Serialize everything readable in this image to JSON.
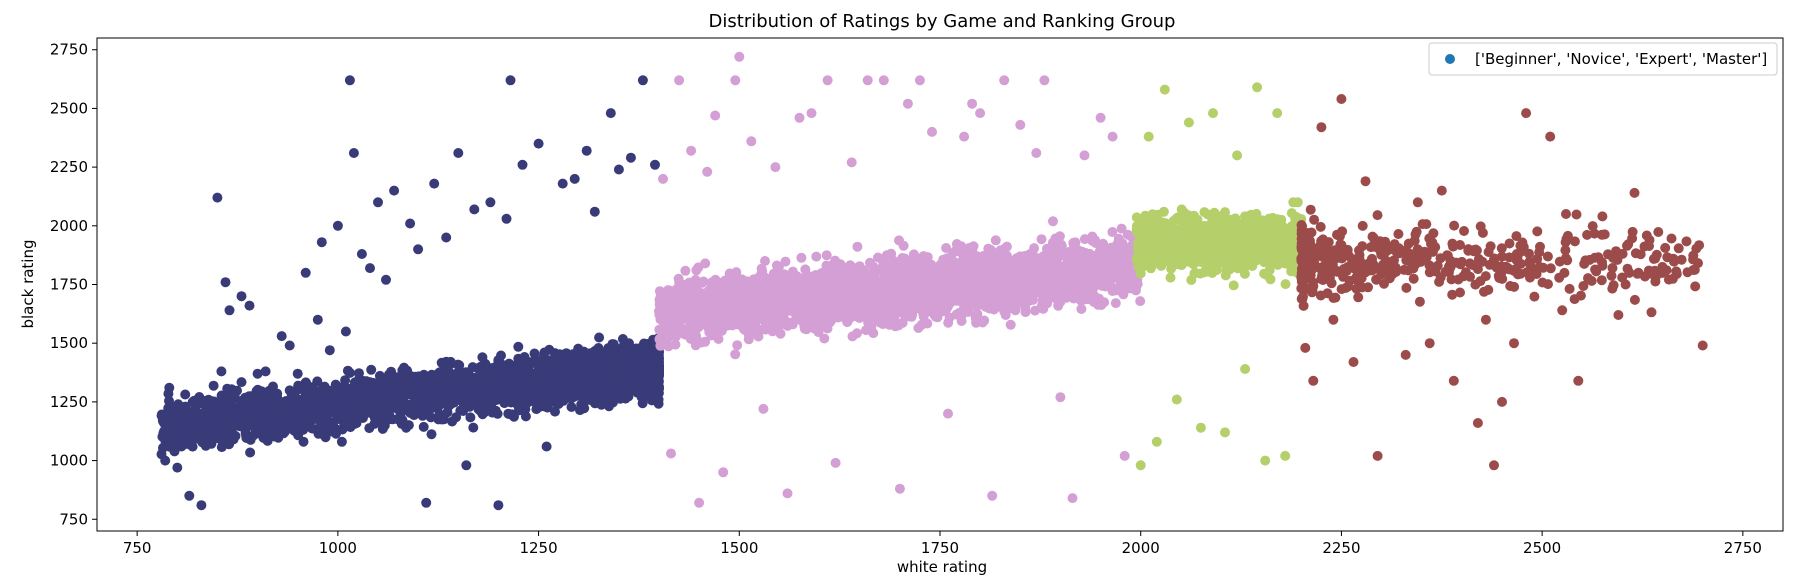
{
  "chart_data": {
    "type": "scatter",
    "title": "Distribution of Ratings by Game and Ranking Group",
    "xlabel": "white rating",
    "ylabel": "black rating",
    "xlim": [
      700,
      2800
    ],
    "ylim": [
      700,
      2800
    ],
    "xticks": [
      750,
      1000,
      1250,
      1500,
      1750,
      2000,
      2250,
      2500,
      2750
    ],
    "yticks": [
      750,
      1000,
      1250,
      1500,
      1750,
      2000,
      2250,
      2500,
      2750
    ],
    "grid": false,
    "legend": {
      "position": "top-right",
      "label": "['Beginner', 'Novice', 'Expert', 'Master']",
      "marker_color": "#1f77b4"
    },
    "groups": [
      {
        "color": "#393b79",
        "x_range": [
          780,
          1400
        ],
        "points": [
          [
            785,
            1000
          ],
          [
            790,
            1310
          ],
          [
            800,
            970
          ],
          [
            810,
            1230
          ],
          [
            815,
            850
          ],
          [
            830,
            810
          ],
          [
            840,
            1240
          ],
          [
            850,
            2120
          ],
          [
            855,
            1380
          ],
          [
            860,
            1760
          ],
          [
            865,
            1640
          ],
          [
            870,
            1090
          ],
          [
            880,
            1700
          ],
          [
            890,
            1660
          ],
          [
            900,
            1370
          ],
          [
            910,
            1380
          ],
          [
            920,
            1120
          ],
          [
            930,
            1530
          ],
          [
            940,
            1490
          ],
          [
            950,
            1370
          ],
          [
            960,
            1800
          ],
          [
            975,
            1600
          ],
          [
            980,
            1930
          ],
          [
            990,
            1470
          ],
          [
            1000,
            2000
          ],
          [
            1005,
            1080
          ],
          [
            1010,
            1550
          ],
          [
            1015,
            2620
          ],
          [
            1020,
            2310
          ],
          [
            1030,
            1880
          ],
          [
            1040,
            1820
          ],
          [
            1050,
            2100
          ],
          [
            1060,
            1770
          ],
          [
            1070,
            2150
          ],
          [
            1085,
            1330
          ],
          [
            1090,
            2010
          ],
          [
            1100,
            1900
          ],
          [
            1110,
            820
          ],
          [
            1120,
            2180
          ],
          [
            1135,
            1950
          ],
          [
            1150,
            2310
          ],
          [
            1160,
            980
          ],
          [
            1170,
            2070
          ],
          [
            1180,
            1440
          ],
          [
            1190,
            2100
          ],
          [
            1200,
            810
          ],
          [
            1210,
            2030
          ],
          [
            1215,
            2620
          ],
          [
            1230,
            2260
          ],
          [
            1250,
            2350
          ],
          [
            1260,
            1060
          ],
          [
            1280,
            2180
          ],
          [
            1295,
            2200
          ],
          [
            1310,
            2320
          ],
          [
            1320,
            2060
          ],
          [
            1340,
            2480
          ],
          [
            1350,
            2240
          ],
          [
            1365,
            2290
          ],
          [
            1380,
            2620
          ],
          [
            1395,
            2260
          ]
        ]
      },
      {
        "color": "#d39fd4",
        "x_range": [
          1400,
          2000
        ],
        "points": [
          [
            1405,
            2200
          ],
          [
            1415,
            1030
          ],
          [
            1425,
            2620
          ],
          [
            1440,
            2320
          ],
          [
            1450,
            820
          ],
          [
            1460,
            2230
          ],
          [
            1470,
            2470
          ],
          [
            1480,
            950
          ],
          [
            1495,
            2620
          ],
          [
            1500,
            2720
          ],
          [
            1515,
            2360
          ],
          [
            1530,
            1220
          ],
          [
            1545,
            2250
          ],
          [
            1560,
            860
          ],
          [
            1575,
            2460
          ],
          [
            1590,
            2480
          ],
          [
            1610,
            2620
          ],
          [
            1620,
            990
          ],
          [
            1640,
            2270
          ],
          [
            1660,
            2620
          ],
          [
            1680,
            2620
          ],
          [
            1700,
            880
          ],
          [
            1710,
            2520
          ],
          [
            1725,
            2620
          ],
          [
            1740,
            2400
          ],
          [
            1760,
            1200
          ],
          [
            1780,
            2380
          ],
          [
            1790,
            2520
          ],
          [
            1800,
            2480
          ],
          [
            1815,
            850
          ],
          [
            1830,
            2620
          ],
          [
            1850,
            2430
          ],
          [
            1870,
            2310
          ],
          [
            1880,
            2620
          ],
          [
            1900,
            1270
          ],
          [
            1915,
            840
          ],
          [
            1930,
            2300
          ],
          [
            1950,
            2460
          ],
          [
            1965,
            2380
          ],
          [
            1980,
            1020
          ]
        ]
      },
      {
        "color": "#b5cf6b",
        "x_range": [
          1995,
          2200
        ],
        "points": [
          [
            2000,
            980
          ],
          [
            2010,
            2380
          ],
          [
            2020,
            1080
          ],
          [
            2030,
            2580
          ],
          [
            2045,
            1260
          ],
          [
            2060,
            2440
          ],
          [
            2075,
            1140
          ],
          [
            2090,
            2480
          ],
          [
            2105,
            1120
          ],
          [
            2120,
            2300
          ],
          [
            2130,
            1390
          ],
          [
            2145,
            2590
          ],
          [
            2155,
            1000
          ],
          [
            2170,
            2480
          ],
          [
            2180,
            1020
          ],
          [
            2190,
            2100
          ]
        ]
      },
      {
        "color": "#9c4b4b",
        "x_range": [
          2200,
          2700
        ],
        "points": [
          [
            2205,
            1480
          ],
          [
            2215,
            1340
          ],
          [
            2225,
            2420
          ],
          [
            2240,
            1600
          ],
          [
            2250,
            2540
          ],
          [
            2265,
            1420
          ],
          [
            2280,
            2190
          ],
          [
            2295,
            1020
          ],
          [
            2310,
            1900
          ],
          [
            2330,
            1450
          ],
          [
            2345,
            1900
          ],
          [
            2360,
            1500
          ],
          [
            2375,
            2150
          ],
          [
            2390,
            1340
          ],
          [
            2410,
            1840
          ],
          [
            2420,
            1160
          ],
          [
            2430,
            1600
          ],
          [
            2440,
            980
          ],
          [
            2450,
            1250
          ],
          [
            2465,
            1500
          ],
          [
            2480,
            2480
          ],
          [
            2490,
            1800
          ],
          [
            2510,
            2380
          ],
          [
            2525,
            1640
          ],
          [
            2545,
            1340
          ],
          [
            2575,
            2040
          ],
          [
            2595,
            1620
          ],
          [
            2615,
            2140
          ],
          [
            2620,
            1800
          ],
          [
            2700,
            1490
          ]
        ]
      }
    ]
  }
}
